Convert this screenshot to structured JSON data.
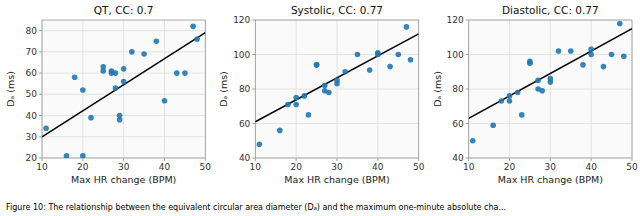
{
  "chart_data": [
    {
      "type": "scatter",
      "title": "QT, CC: 0.7",
      "x_label": "Max HR change (BPM)",
      "y_label": "Dₐ (ms)",
      "xlim": [
        10,
        50
      ],
      "ylim": [
        20,
        85
      ],
      "xticks": [
        10,
        20,
        30,
        40,
        50
      ],
      "yticks": [
        20,
        30,
        40,
        50,
        60,
        70,
        80
      ],
      "grid": true,
      "series": [
        {
          "type": "scatter",
          "color": "#1f77b4",
          "x": [
            11,
            16,
            18,
            20,
            20,
            22,
            25,
            25,
            27,
            27,
            28,
            28,
            29,
            29,
            30,
            30,
            32,
            35,
            38,
            40,
            43,
            45,
            47,
            48
          ],
          "values": [
            34,
            21,
            58,
            21,
            52,
            39,
            61,
            63,
            60,
            61,
            53,
            60,
            38,
            40,
            62,
            56,
            70,
            69,
            75,
            47,
            60,
            60,
            82,
            76
          ]
        },
        {
          "type": "line",
          "color": "black",
          "x": [
            10,
            50
          ],
          "values": [
            30,
            79
          ]
        }
      ]
    },
    {
      "type": "scatter",
      "title": "Systolic, CC: 0.77",
      "x_label": "Max HR change (BPM)",
      "y_label": "Dₐ (ms)",
      "xlim": [
        10,
        50
      ],
      "ylim": [
        40,
        120
      ],
      "xticks": [
        10,
        20,
        30,
        40,
        50
      ],
      "yticks": [
        40,
        60,
        80,
        100,
        120
      ],
      "grid": true,
      "series": [
        {
          "type": "scatter",
          "color": "#1f77b4",
          "x": [
            11,
            16,
            18,
            20,
            20,
            22,
            23,
            25,
            25,
            27,
            27,
            28,
            30,
            30,
            32,
            35,
            38,
            40,
            40,
            43,
            45,
            47,
            48
          ],
          "values": [
            48,
            56,
            71,
            71,
            75,
            76,
            65,
            94,
            94,
            79,
            82,
            78,
            83,
            85,
            90,
            100,
            91,
            101,
            100,
            93,
            100,
            116,
            97
          ]
        },
        {
          "type": "line",
          "color": "black",
          "x": [
            10,
            50
          ],
          "values": [
            61,
            112
          ]
        }
      ]
    },
    {
      "type": "scatter",
      "title": "Diastolic, CC: 0.77",
      "x_label": "Max HR change (BPM)",
      "y_label": "Dₐ (ms)",
      "xlim": [
        10,
        50
      ],
      "ylim": [
        40,
        120
      ],
      "xticks": [
        10,
        20,
        30,
        40,
        50
      ],
      "yticks": [
        40,
        60,
        80,
        100,
        120
      ],
      "grid": true,
      "series": [
        {
          "type": "scatter",
          "color": "#1f77b4",
          "x": [
            11,
            16,
            18,
            20,
            20,
            22,
            23,
            25,
            25,
            27,
            27,
            28,
            30,
            30,
            32,
            35,
            38,
            40,
            40,
            43,
            45,
            47,
            48
          ],
          "values": [
            50,
            59,
            73,
            73,
            76,
            78,
            65,
            96,
            95,
            80,
            85,
            79,
            84,
            86,
            102,
            102,
            94,
            103,
            100,
            93,
            100,
            118,
            99
          ]
        },
        {
          "type": "line",
          "color": "black",
          "x": [
            10,
            50
          ],
          "values": [
            63,
            115
          ]
        }
      ]
    }
  ],
  "caption": "Figure 10: The relationship between the equivalent circular area diameter (Dₐ) and the maximum one-minute absolute cha..."
}
